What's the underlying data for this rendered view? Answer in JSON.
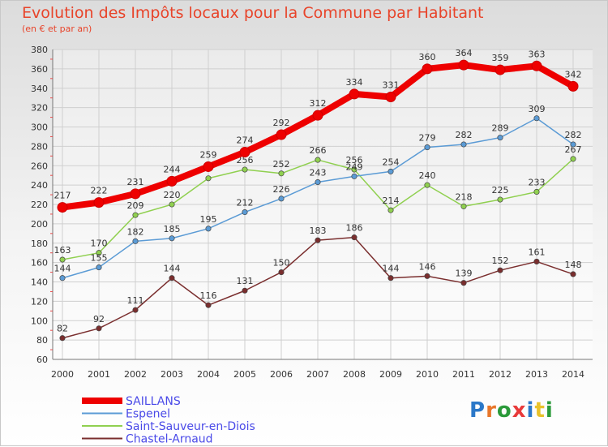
{
  "header": {
    "title": "Evolution des Impôts locaux pour la Commune par Habitant",
    "subtitle": "(en € et par an)"
  },
  "logo": {
    "text": "Proxiti",
    "colors": [
      "#2b78c8",
      "#e8762a",
      "#2b9a3a",
      "#e83a3a",
      "#2b78c8",
      "#e8c22a",
      "#2b9a3a"
    ]
  },
  "chart_data": {
    "type": "line",
    "title": "Evolution des Impôts locaux pour la Commune par Habitant",
    "subtitle": "(en € et par an)",
    "x": [
      "2000",
      "2001",
      "2002",
      "2003",
      "2004",
      "2005",
      "2006",
      "2007",
      "2008",
      "2009",
      "2010",
      "2011",
      "2012",
      "2013",
      "2014"
    ],
    "ylim": [
      60,
      380
    ],
    "yticks": [
      60,
      80,
      100,
      120,
      140,
      160,
      180,
      200,
      220,
      240,
      260,
      280,
      300,
      320,
      340,
      360,
      380
    ],
    "grid": true,
    "legend_position": "bottom-left",
    "series": [
      {
        "name": "SAILLANS",
        "color": "#ee0000",
        "values": [
          217,
          222,
          231,
          244,
          259,
          274,
          292,
          312,
          334,
          331,
          360,
          364,
          359,
          363,
          342
        ]
      },
      {
        "name": "Espenel",
        "color": "#5b9bd5",
        "values": [
          144,
          155,
          182,
          185,
          195,
          212,
          226,
          243,
          249,
          254,
          279,
          282,
          289,
          309,
          282
        ]
      },
      {
        "name": "Saint-Sauveur-en-Diois",
        "color": "#90d050",
        "values": [
          163,
          170,
          209,
          220,
          247,
          256,
          252,
          266,
          256,
          214,
          240,
          218,
          225,
          233,
          267
        ]
      },
      {
        "name": "Chastel-Arnaud",
        "color": "#7a2e2e",
        "values": [
          82,
          92,
          111,
          144,
          116,
          131,
          150,
          183,
          186,
          144,
          146,
          139,
          152,
          161,
          148
        ]
      }
    ],
    "data_labels": [
      [
        "217",
        "222",
        "231",
        "244",
        "259",
        "274",
        "292",
        "312",
        "334",
        "331",
        "360",
        "364",
        "359",
        "363",
        "342"
      ],
      [
        "144",
        "155",
        "182",
        "185",
        "195",
        "212",
        "226",
        "243",
        "249",
        "254",
        "279",
        "282",
        "289",
        "309",
        "282"
      ],
      [
        "163",
        "170",
        "209",
        "220",
        "",
        "256",
        "252",
        "266",
        "256",
        "214",
        "240",
        "218",
        "225",
        "233",
        "267"
      ],
      [
        "82",
        "92",
        "111",
        "144",
        "116",
        "131",
        "150",
        "183",
        "186",
        "144",
        "146",
        "139",
        "152",
        "161",
        "148"
      ]
    ]
  }
}
